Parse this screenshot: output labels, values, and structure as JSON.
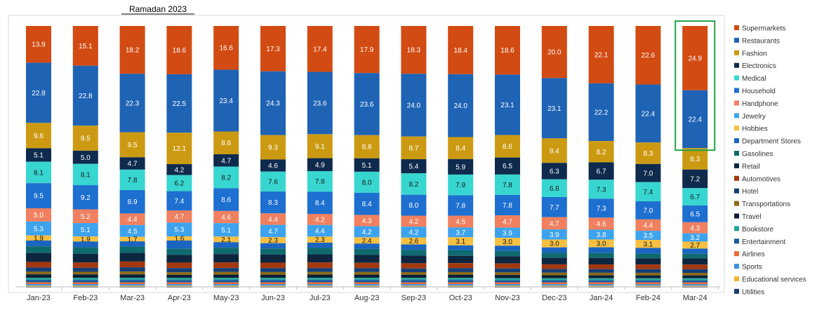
{
  "chart_data": {
    "type": "bar",
    "stacked": true,
    "normalized": "percent",
    "title": "",
    "xlabel": "",
    "ylabel": "",
    "ylim": [
      0,
      100
    ],
    "grid": false,
    "legend_position": "right",
    "annotations": [
      {
        "text": "Ramadan 2023",
        "target": "Mar-23"
      },
      {
        "text": "",
        "type": "highlight-box",
        "target": "Mar-24",
        "series": [
          "Supermarkets",
          "Restaurants"
        ],
        "color": "#21a34a"
      }
    ],
    "categories": [
      "Jan-23",
      "Feb-23",
      "Mar-23",
      "Apr-23",
      "May-23",
      "Jun-23",
      "Jul-23",
      "Aug-23",
      "Sep-23",
      "Oct-23",
      "Nov-23",
      "Dec-23",
      "Jan-24",
      "Feb-24",
      "Mar-24"
    ],
    "series": [
      {
        "name": "Supermarkets",
        "color": "#d24b12",
        "label_color": "#ffffff",
        "values": [
          13.9,
          15.1,
          18.2,
          18.6,
          16.6,
          17.3,
          17.4,
          17.9,
          18.3,
          18.4,
          18.6,
          20.0,
          22.1,
          22.6,
          24.9
        ],
        "labels": [
          "13.9",
          "15.1",
          "18.2",
          "18.6",
          "16.6",
          "17.3",
          "17.4",
          "17.9",
          "18.3",
          "18.4",
          "18.6",
          "20.0",
          "22.1",
          "22.6",
          "24.9"
        ]
      },
      {
        "name": "Restaurants",
        "color": "#1f63b5",
        "label_color": "#ffffff",
        "values": [
          22.8,
          22.8,
          22.3,
          22.5,
          23.4,
          24.3,
          23.6,
          23.6,
          24.0,
          24.0,
          23.1,
          23.1,
          22.2,
          22.4,
          22.4
        ],
        "labels": [
          "22.8",
          "22.8",
          "22.3",
          "22.5",
          "23.4",
          "24.3",
          "23.6",
          "23.6",
          "24.0",
          "24.0",
          "23.1",
          "23.1",
          "22.2",
          "22.4",
          "22.4"
        ]
      },
      {
        "name": "Fashion",
        "color": "#cc9a12",
        "label_color": "#ffffff",
        "values": [
          9.6,
          9.5,
          9.5,
          12.1,
          8.6,
          9.3,
          9.1,
          8.8,
          8.7,
          8.4,
          8.6,
          9.4,
          8.2,
          8.3,
          8.3
        ],
        "labels": [
          "9.6",
          "9.5",
          "9.5",
          "12.1",
          "8.6",
          "9.3",
          "9.1",
          "8.8",
          "8.7",
          "8.4",
          "8.6",
          "9.4",
          "8.2",
          "8.3",
          "8.3"
        ]
      },
      {
        "name": "Electronics",
        "color": "#0e2a4d",
        "label_color": "#ffffff",
        "values": [
          5.1,
          5.0,
          4.7,
          4.2,
          4.7,
          4.6,
          4.9,
          5.1,
          5.4,
          5.9,
          6.5,
          6.3,
          6.7,
          7.0,
          7.2
        ],
        "labels": [
          "5.1",
          "5.0",
          "4.7",
          "4.2",
          "4.7",
          "4.6",
          "4.9",
          "5.1",
          "5.4",
          "5.9",
          "6.5",
          "6.3",
          "6.7",
          "7.0",
          "7.2"
        ]
      },
      {
        "name": "Medical",
        "color": "#38d6d0",
        "label_color": "#1a1a1a",
        "values": [
          8.1,
          8.1,
          7.8,
          6.2,
          8.2,
          7.6,
          7.8,
          8.0,
          8.2,
          7.9,
          7.8,
          6.8,
          7.3,
          7.4,
          6.7
        ],
        "labels": [
          "8.1",
          "8.1",
          "7.8",
          "6.2",
          "8.2",
          "7.6",
          "7.8",
          "8.0",
          "8.2",
          "7.9",
          "7.8",
          "6.8",
          "7.3",
          "7.4",
          "6.7"
        ]
      },
      {
        "name": "Household",
        "color": "#1d6fd0",
        "label_color": "#ffffff",
        "values": [
          9.5,
          9.2,
          8.9,
          7.4,
          8.6,
          8.3,
          8.4,
          8.4,
          8.0,
          7.8,
          7.8,
          7.7,
          7.3,
          7.0,
          6.5
        ],
        "labels": [
          "9.5",
          "9.2",
          "8.9",
          "7.4",
          "8.6",
          "8.3",
          "8.4",
          "8.4",
          "8.0",
          "7.8",
          "7.8",
          "7.7",
          "7.3",
          "7.0",
          "6.5"
        ]
      },
      {
        "name": "Handphone",
        "color": "#f08060",
        "label_color": "#ffffff",
        "values": [
          5.0,
          5.2,
          4.4,
          4.7,
          4.6,
          4.4,
          4.2,
          4.3,
          4.2,
          4.5,
          4.7,
          4.7,
          4.6,
          4.4,
          4.3
        ],
        "labels": [
          "5.0",
          "5.2",
          "4.4",
          "4.7",
          "4.6",
          "4.4",
          "4.2",
          "4.3",
          "4.2",
          "4.5",
          "4.7",
          "4.7",
          "4.6",
          "4.4",
          "4.3"
        ]
      },
      {
        "name": "Jewelry",
        "color": "#3ea3ee",
        "label_color": "#ffffff",
        "values": [
          5.3,
          5.1,
          4.5,
          5.3,
          5.1,
          4.7,
          4.4,
          4.2,
          4.2,
          3.7,
          3.9,
          3.9,
          3.8,
          3.5,
          3.2
        ],
        "labels": [
          "5.3",
          "5.1",
          "4.5",
          "5.3",
          "5.1",
          "4.7",
          "4.4",
          "4.2",
          "4.2",
          "3.7",
          "3.9",
          "3.9",
          "3.8",
          "3.5",
          "3.2"
        ]
      },
      {
        "name": "Hobbies",
        "color": "#f7c042",
        "label_color": "#1a1a1a",
        "values": [
          1.9,
          1.9,
          1.7,
          1.6,
          2.1,
          2.3,
          2.3,
          2.4,
          2.6,
          3.1,
          3.0,
          3.0,
          3.0,
          3.1,
          2.7
        ],
        "labels": [
          "1.9",
          "1.9",
          "1.7",
          "1.6",
          "2.1",
          "2.3",
          "2.3",
          "2.4",
          "2.6",
          "3.1",
          "3.0",
          "3.0",
          "3.0",
          "3.1",
          "2.7"
        ]
      },
      {
        "name": "Department Stores",
        "color": "#1a65c0",
        "label_color": "#ffffff",
        "values": [
          2.2,
          2.2,
          2.0,
          3.2,
          2.1,
          2.0,
          2.0,
          2.0,
          2.1,
          1.9,
          2.0,
          2.1,
          2.2,
          2.2,
          2.0
        ],
        "labels": []
      },
      {
        "name": "Gasolines",
        "color": "#0f6a6e",
        "label_color": "#ffffff",
        "values": [
          2.5,
          2.5,
          2.4,
          2.3,
          2.4,
          2.3,
          2.4,
          2.3,
          2.2,
          2.1,
          2.0,
          1.9,
          1.9,
          1.8,
          1.8
        ],
        "labels": []
      },
      {
        "name": "Retail",
        "color": "#0d2640",
        "label_color": "#ffffff",
        "values": [
          3.4,
          3.3,
          3.3,
          3.0,
          3.2,
          3.1,
          3.1,
          3.0,
          2.9,
          2.8,
          2.8,
          2.5,
          2.5,
          2.4,
          2.4
        ],
        "labels": []
      },
      {
        "name": "Automotives",
        "color": "#a3380e",
        "label_color": "#ffffff",
        "values": [
          2.1,
          2.0,
          2.2,
          2.1,
          2.1,
          2.1,
          2.1,
          2.0,
          2.0,
          1.9,
          1.9,
          1.8,
          1.8,
          1.8,
          1.8
        ],
        "labels": []
      },
      {
        "name": "Hotel",
        "color": "#143e75",
        "label_color": "#ffffff",
        "values": [
          1.6,
          1.5,
          1.6,
          1.6,
          1.5,
          1.5,
          1.5,
          1.5,
          1.4,
          1.5,
          1.5,
          1.4,
          1.4,
          1.4,
          1.4
        ],
        "labels": []
      },
      {
        "name": "Transportations",
        "color": "#8a6a14",
        "label_color": "#ffffff",
        "values": [
          1.0,
          1.0,
          1.1,
          1.0,
          1.0,
          1.0,
          1.0,
          1.0,
          1.0,
          1.0,
          1.0,
          1.0,
          1.0,
          1.0,
          1.0
        ],
        "labels": []
      },
      {
        "name": "Travel",
        "color": "#0b1e36",
        "label_color": "#ffffff",
        "values": [
          1.3,
          1.3,
          1.3,
          1.2,
          1.2,
          1.2,
          1.2,
          1.2,
          1.2,
          1.2,
          1.2,
          1.1,
          1.1,
          1.1,
          1.1
        ],
        "labels": []
      },
      {
        "name": "Bookstore",
        "color": "#26a39a",
        "label_color": "#ffffff",
        "values": [
          0.8,
          0.8,
          0.8,
          0.8,
          0.8,
          0.8,
          0.8,
          0.8,
          0.8,
          0.8,
          0.8,
          0.8,
          0.8,
          0.8,
          0.8
        ],
        "labels": []
      },
      {
        "name": "Entertainment",
        "color": "#1a5a9e",
        "label_color": "#ffffff",
        "values": [
          0.9,
          0.9,
          0.9,
          0.9,
          0.9,
          0.9,
          0.9,
          0.9,
          0.9,
          0.9,
          0.8,
          0.8,
          0.8,
          0.8,
          0.8
        ],
        "labels": []
      },
      {
        "name": "Airlines",
        "color": "#e86a3a",
        "label_color": "#ffffff",
        "values": [
          0.7,
          0.7,
          0.7,
          0.7,
          0.7,
          0.7,
          0.7,
          0.7,
          0.7,
          0.7,
          0.7,
          0.7,
          0.7,
          0.7,
          0.7
        ],
        "labels": []
      },
      {
        "name": "Sports",
        "color": "#3a8fe0",
        "label_color": "#ffffff",
        "values": [
          0.6,
          0.6,
          0.6,
          0.6,
          0.6,
          0.6,
          0.6,
          0.6,
          0.6,
          0.6,
          0.6,
          0.6,
          0.6,
          0.6,
          0.6
        ],
        "labels": []
      },
      {
        "name": "Educational services",
        "color": "#f2b630",
        "label_color": "#1a1a1a",
        "values": [
          0.4,
          0.4,
          0.4,
          0.4,
          0.4,
          0.4,
          0.4,
          0.4,
          0.4,
          0.4,
          0.4,
          0.4,
          0.4,
          0.4,
          0.4
        ],
        "labels": []
      },
      {
        "name": "Utilities",
        "color": "#1c3f6e",
        "label_color": "#ffffff",
        "values": [
          0.3,
          0.3,
          0.3,
          0.3,
          0.3,
          0.3,
          0.3,
          0.3,
          0.3,
          0.3,
          0.3,
          0.3,
          0.3,
          0.3,
          0.3
        ],
        "labels": []
      }
    ]
  }
}
